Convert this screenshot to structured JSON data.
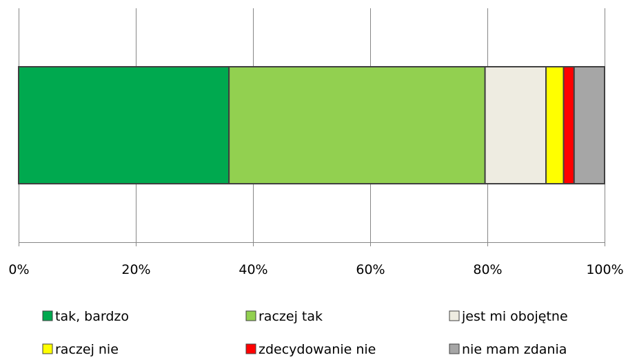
{
  "chart_data": {
    "type": "bar",
    "orientation": "horizontal",
    "stacked": true,
    "title": "",
    "xlabel": "",
    "ylabel": "",
    "xlim": [
      0,
      100
    ],
    "x_ticks": [
      "0%",
      "20%",
      "40%",
      "60%",
      "80%",
      "100%"
    ],
    "grid": true,
    "legend_position": "bottom",
    "series": [
      {
        "name": "tak, bardzo",
        "value": 35.9,
        "color": "#00a94f"
      },
      {
        "name": "raczej tak",
        "value": 43.7,
        "color": "#92d050"
      },
      {
        "name": "jest mi obojętne",
        "value": 10.4,
        "color": "#eeece1"
      },
      {
        "name": "raczej nie",
        "value": 3.0,
        "color": "#ffff00"
      },
      {
        "name": "zdecydowanie nie",
        "value": 1.8,
        "color": "#ff0000"
      },
      {
        "name": "nie mam zdania",
        "value": 5.2,
        "color": "#a6a6a6"
      }
    ]
  }
}
